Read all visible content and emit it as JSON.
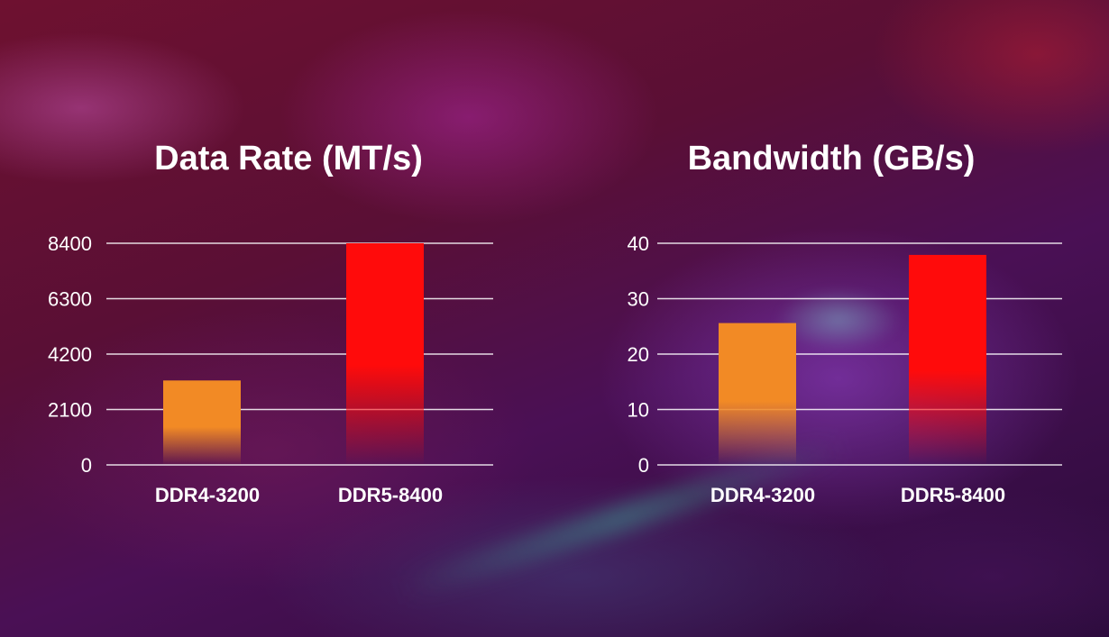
{
  "chart_data": [
    {
      "type": "bar",
      "title": "Data Rate (MT/s)",
      "categories": [
        "DDR4-3200",
        "DDR5-8400"
      ],
      "values": [
        3200,
        8400
      ],
      "bar_colors": [
        "#f28a25",
        "#ff0b0b"
      ],
      "ylim": [
        0,
        8400
      ],
      "yticks": [
        0,
        2100,
        4200,
        6300,
        8400
      ],
      "ytick_labels": [
        "0",
        "2100",
        "4200",
        "6300",
        "8400"
      ],
      "grid": true,
      "xlabel": "",
      "ylabel": ""
    },
    {
      "type": "bar",
      "title": "Bandwidth (GB/s)",
      "categories": [
        "DDR4-3200",
        "DDR5-8400"
      ],
      "values": [
        25.6,
        37.9
      ],
      "bar_colors": [
        "#f28a25",
        "#ff0b0b"
      ],
      "ylim": [
        0,
        40
      ],
      "yticks": [
        0,
        10,
        20,
        30,
        40
      ],
      "ytick_labels": [
        "0",
        "10",
        "20",
        "30",
        "40"
      ],
      "grid": true,
      "xlabel": "",
      "ylabel": ""
    }
  ]
}
